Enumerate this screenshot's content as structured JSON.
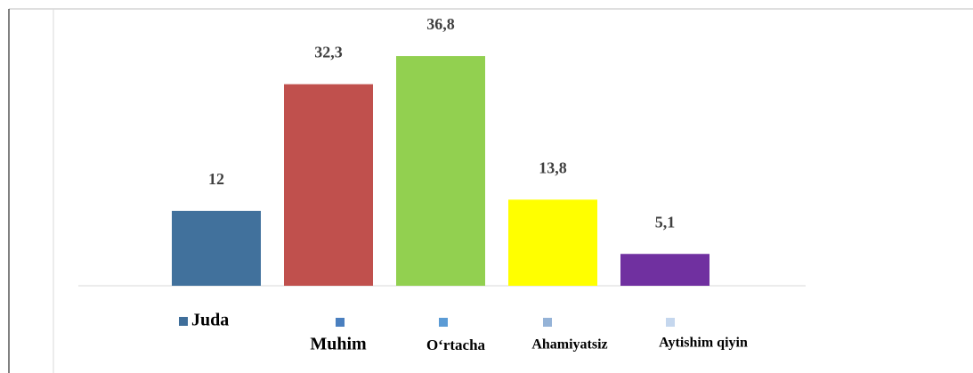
{
  "chart_data": {
    "type": "bar",
    "categories": [
      "Juda",
      "Muhim",
      "O‘rtacha",
      "Ahamiyatsiz",
      "Aytishim qiyin"
    ],
    "values": [
      12,
      32.3,
      36.8,
      13.8,
      5.1
    ],
    "value_labels": [
      "12",
      "32,3",
      "36,8",
      "13,8",
      "5,1"
    ],
    "colors": [
      "#41719c",
      "#c0504d",
      "#92d050",
      "#ffff00",
      "#7030a0"
    ],
    "legend_colors": [
      "#3f6e9a",
      "#4a7fbf",
      "#5b9bd5",
      "#95b3d7",
      "#c5d7ee"
    ],
    "ylim": [
      0,
      40
    ]
  }
}
